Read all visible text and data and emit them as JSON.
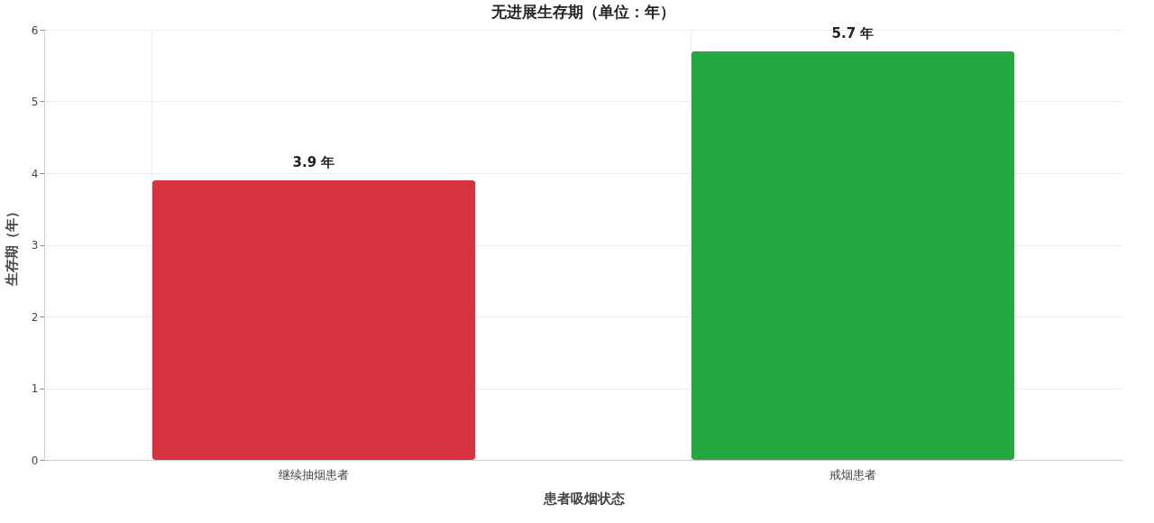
{
  "chart_data": {
    "type": "bar",
    "title": "无进展生存期（单位：年）",
    "xlabel": "患者吸烟状态",
    "ylabel": "生存期（年）",
    "categories": [
      "继续抽烟患者",
      "戒烟患者"
    ],
    "values": [
      3.9,
      5.7
    ],
    "value_labels": [
      "3.9 年",
      "5.7 年"
    ],
    "colors": [
      "#d7333f",
      "#24a83f"
    ],
    "ylim": [
      0,
      6
    ],
    "yticks": [
      0,
      1,
      2,
      3,
      4,
      5,
      6
    ],
    "grid": true
  }
}
